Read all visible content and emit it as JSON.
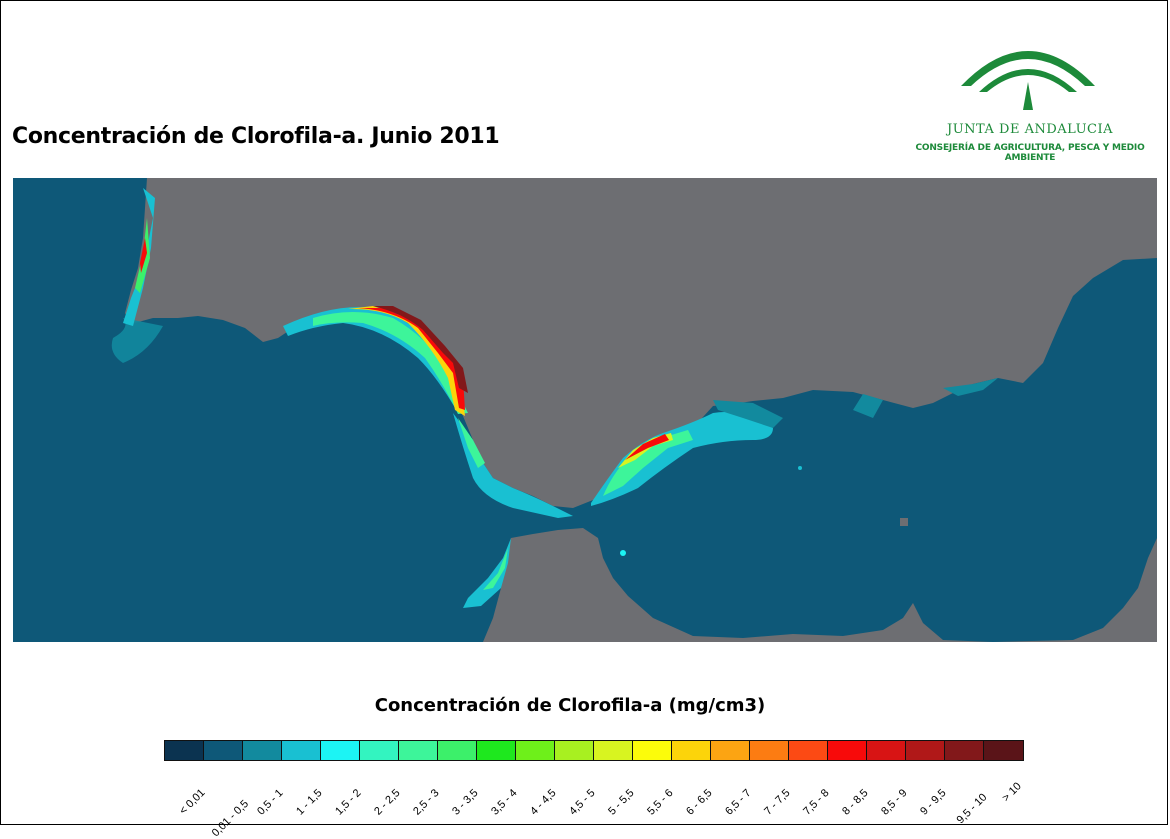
{
  "title": "Concentración de Clorofila-a. Junio 2011",
  "logo": {
    "name": "JUNTA DE ANDALUCIA",
    "department": "CONSEJERÍA DE AGRICULTURA, PESCA Y MEDIO AMBIENTE"
  },
  "legend": {
    "title": "Concentración de Clorofila-a (mg/cm3)",
    "classes": [
      {
        "label": "< 0,01",
        "color": "#0b3350"
      },
      {
        "label": "0,01 - 0,5",
        "color": "#0e5878"
      },
      {
        "label": "0,5 - 1",
        "color": "#128a9e"
      },
      {
        "label": "1 - 1,5",
        "color": "#19c0d2"
      },
      {
        "label": "1,5 - 2",
        "color": "#1cf4f4"
      },
      {
        "label": "2 - 2,5",
        "color": "#33f4c0"
      },
      {
        "label": "2,5 - 3",
        "color": "#3df59a"
      },
      {
        "label": "3 - 3,5",
        "color": "#3cf06a"
      },
      {
        "label": "3,5 - 4",
        "color": "#1ee81e"
      },
      {
        "label": "4 - 4,5",
        "color": "#6ef01a"
      },
      {
        "label": "4,5 - 5",
        "color": "#a8f020"
      },
      {
        "label": "5 - 5,5",
        "color": "#d8f420"
      },
      {
        "label": "5,5 - 6",
        "color": "#fcfc0a"
      },
      {
        "label": "6 - 6,5",
        "color": "#fcd40a"
      },
      {
        "label": "6,5 - 7",
        "color": "#fca412"
      },
      {
        "label": "7 - 7,5",
        "color": "#fc7c12"
      },
      {
        "label": "7,5 - 8",
        "color": "#fc4a14"
      },
      {
        "label": "8 - 8,5",
        "color": "#f80a0a"
      },
      {
        "label": "8,5 - 9",
        "color": "#d81414"
      },
      {
        "label": "9 - 9,5",
        "color": "#b01818"
      },
      {
        "label": "9,5 - 10",
        "color": "#82181a"
      },
      {
        "label": "> 10",
        "color": "#5a1418"
      }
    ]
  },
  "map": {
    "land_color": "#6d6e72",
    "sea_color": "#0e5878"
  }
}
